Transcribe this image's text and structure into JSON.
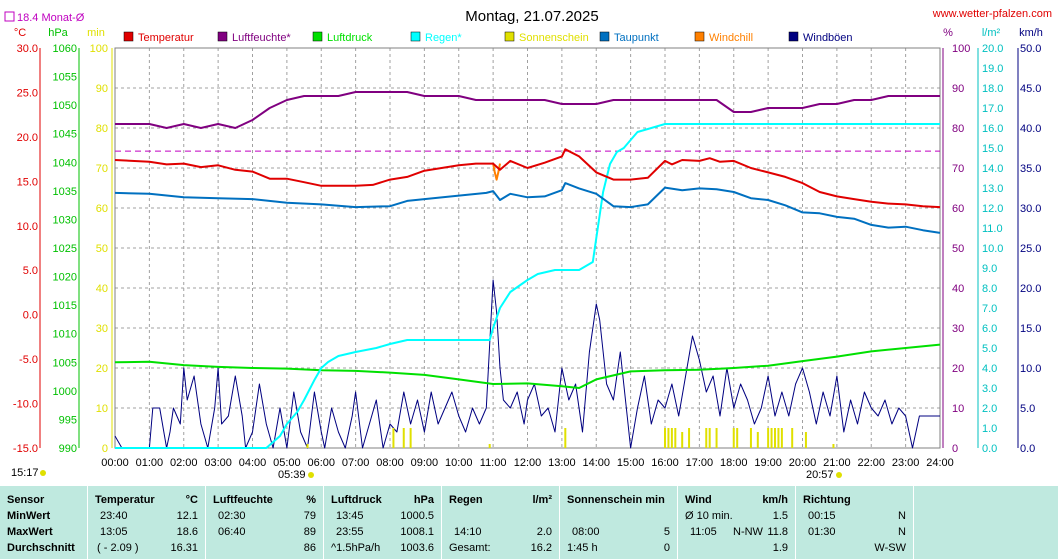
{
  "title": "Montag, 21.07.2025",
  "site": "www.wetter-pfalzen.com",
  "monthly_avg_label": "18.4 Monat-Ø",
  "sunrise": "05:39",
  "sunset": "20:57",
  "colors": {
    "temperature": "#e00000",
    "humidity": "#800080",
    "pressure": "#00e000",
    "rain": "#00ffff",
    "sunshine": "#e0e000",
    "dewpoint": "#0070c0",
    "windchill": "#ff8000",
    "gusts": "#000080",
    "monthly": "#c000c0",
    "plot_bg": "#ffffff",
    "summary_bg": "#bfe9df"
  },
  "chart_data": {
    "type": "line",
    "title": "Montag, 21.07.2025",
    "x_ticks": [
      "00:00",
      "01:00",
      "02:00",
      "03:00",
      "04:00",
      "05:00",
      "06:00",
      "07:00",
      "08:00",
      "09:00",
      "10:00",
      "11:00",
      "12:00",
      "13:00",
      "14:00",
      "15:00",
      "16:00",
      "17:00",
      "18:00",
      "19:00",
      "20:00",
      "21:00",
      "22:00",
      "23:00",
      "24:00"
    ],
    "axes": [
      {
        "unit": "°C",
        "range": [
          -15,
          30
        ],
        "ticks": [
          "30.0",
          "25.0",
          "20.0",
          "15.0",
          "10.0",
          "5.0",
          "0.0",
          "-5.0",
          "-10.0",
          "-15.0"
        ],
        "color": "#e00000"
      },
      {
        "unit": "hPa",
        "range": [
          990,
          1060
        ],
        "ticks": [
          "1060",
          "1055",
          "1050",
          "1045",
          "1040",
          "1035",
          "1030",
          "1025",
          "1020",
          "1015",
          "1010",
          "1005",
          "1000",
          "995",
          "990"
        ],
        "color": "#00c000"
      },
      {
        "unit": "min",
        "range": [
          0,
          100
        ],
        "ticks": [
          "100",
          "90",
          "80",
          "70",
          "60",
          "50",
          "40",
          "30",
          "20",
          "10",
          "0"
        ],
        "color": "#e0e000"
      },
      {
        "unit": "%",
        "range": [
          0,
          100
        ],
        "ticks": [
          "100",
          "90",
          "80",
          "70",
          "60",
          "50",
          "40",
          "30",
          "20",
          "10",
          "0"
        ],
        "color": "#800080"
      },
      {
        "unit": "l/m²",
        "range": [
          0,
          20
        ],
        "ticks": [
          "20.0",
          "19.0",
          "18.0",
          "17.0",
          "16.0",
          "15.0",
          "14.0",
          "13.0",
          "12.0",
          "11.0",
          "10.0",
          "9.0",
          "8.0",
          "7.0",
          "6.0",
          "5.0",
          "4.0",
          "3.0",
          "2.0",
          "1.0",
          "0.0"
        ],
        "color": "#00c0c0"
      },
      {
        "unit": "km/h",
        "range": [
          0,
          50
        ],
        "ticks": [
          "50.0",
          "45.0",
          "40.0",
          "35.0",
          "30.0",
          "25.0",
          "20.0",
          "15.0",
          "10.0",
          "5.0",
          "0.0"
        ],
        "color": "#000080"
      }
    ],
    "legend": [
      "Temperatur",
      "Luftfeuchte*",
      "Luftdruck",
      "Regen*",
      "Sonnenschein",
      "Taupunkt",
      "Windchill",
      "Windböen"
    ],
    "monthly_avg_temp": 18.4,
    "series": [
      {
        "name": "Temperatur",
        "axis": "°C",
        "x": [
          0,
          1,
          1.5,
          2,
          2.5,
          3,
          3.5,
          4,
          4.5,
          5,
          5.5,
          6,
          6.5,
          7,
          7.5,
          8,
          8.5,
          9,
          9.5,
          10,
          10.5,
          11,
          11.2,
          11.5,
          12,
          12.5,
          13,
          13.1,
          13.5,
          14,
          14.5,
          15,
          15.5,
          16,
          16.2,
          16.5,
          17,
          17.3,
          17.6,
          18,
          18.5,
          19,
          19.5,
          20,
          20.5,
          21,
          21.5,
          22,
          22.5,
          23,
          23.5,
          24
        ],
        "y": [
          17.4,
          17.2,
          16.9,
          17.0,
          16.6,
          16.8,
          16.3,
          16.1,
          15.3,
          15.3,
          14.9,
          14.5,
          14.5,
          14.5,
          14.6,
          15.2,
          15.5,
          16.2,
          16.5,
          16.8,
          17.0,
          17.0,
          16.3,
          17.3,
          16.5,
          17.1,
          17.8,
          18.6,
          17.8,
          16.0,
          15.2,
          15.2,
          15.4,
          17.3,
          16.9,
          17.4,
          17.3,
          17.6,
          17.2,
          17.3,
          16.5,
          16.0,
          15.5,
          14.8,
          13.8,
          13.3,
          13.0,
          12.7,
          12.5,
          12.4,
          12.2,
          12.1
        ]
      },
      {
        "name": "Luftfeuchte*",
        "axis": "%",
        "x": [
          0,
          0.5,
          1,
          1.5,
          2,
          2.5,
          3,
          3.5,
          4,
          4.5,
          5,
          5.5,
          6,
          6.5,
          7,
          7.5,
          8,
          8.5,
          9,
          9.5,
          10,
          10.5,
          11,
          11.5,
          12,
          12.5,
          13,
          13.5,
          14,
          14.5,
          15,
          15.5,
          16,
          16.5,
          17,
          17.5,
          18,
          18.5,
          19,
          19.5,
          20,
          20.5,
          21,
          21.5,
          22,
          22.5,
          23,
          23.5,
          24
        ],
        "y": [
          81,
          81,
          81,
          80,
          81,
          80,
          81,
          80,
          82,
          85,
          87,
          88,
          88,
          88,
          89,
          89,
          89,
          89,
          88,
          88,
          88,
          87,
          87,
          87,
          87,
          87,
          86,
          86,
          86,
          87,
          87,
          87,
          87,
          87,
          87,
          87,
          84,
          84,
          85,
          85,
          85,
          86,
          86,
          87,
          87,
          88,
          88,
          88,
          88
        ]
      },
      {
        "name": "Luftdruck",
        "axis": "hPa",
        "x": [
          0,
          1,
          2,
          3,
          4,
          5,
          6,
          7,
          8,
          8.5,
          9,
          10,
          11,
          12,
          13,
          13.5,
          14,
          15,
          16,
          17,
          18,
          19,
          20,
          21,
          22,
          23,
          24
        ],
        "y": [
          1005.0,
          1005.1,
          1004.5,
          1004.2,
          1004.0,
          1003.9,
          1003.6,
          1003.5,
          1003.2,
          1003.0,
          1002.8,
          1002.0,
          1001.2,
          1001.3,
          1000.8,
          1000.5,
          1002.0,
          1003.4,
          1003.6,
          1003.7,
          1004.0,
          1004.4,
          1005.2,
          1006.0,
          1006.9,
          1007.5,
          1008.1
        ]
      },
      {
        "name": "Regen*",
        "axis": "l/m²",
        "x": [
          0,
          4.4,
          4.8,
          5.0,
          5.3,
          5.5,
          5.8,
          6.0,
          6.2,
          6.5,
          7.0,
          7.3,
          7.6,
          8.0,
          8.5,
          9.0,
          10.0,
          10.9,
          11.0,
          11.2,
          11.5,
          12.0,
          12.3,
          12.8,
          13.5,
          13.9,
          14.0,
          14.2,
          14.4,
          14.6,
          14.8,
          15.0,
          15.2,
          15.6,
          16.0,
          16.5,
          17.0,
          18.0,
          19.0,
          20.0,
          21.0,
          22.0,
          23.0,
          24.0
        ],
        "y": [
          0,
          0,
          0.6,
          1.2,
          1.8,
          2.4,
          3.4,
          4.0,
          4.3,
          4.6,
          4.8,
          4.9,
          5.0,
          5.2,
          5.4,
          5.4,
          5.4,
          5.4,
          6.0,
          7.0,
          7.8,
          8.4,
          8.7,
          8.9,
          8.9,
          9.3,
          10.5,
          12.8,
          14.2,
          14.8,
          15.0,
          15.4,
          15.8,
          16.0,
          16.2,
          16.2,
          16.2,
          16.2,
          16.2,
          16.2,
          16.2,
          16.2,
          16.2,
          16.2
        ]
      },
      {
        "name": "Taupunkt",
        "axis": "°C",
        "x": [
          0,
          1,
          2,
          3,
          4,
          5,
          6,
          7,
          8,
          8.5,
          9,
          10,
          10.8,
          11,
          11.2,
          11.5,
          12,
          12.5,
          13,
          13.1,
          13.5,
          14,
          14.5,
          15,
          15.5,
          16,
          16.5,
          17,
          17.5,
          18,
          18.5,
          19,
          19.5,
          20,
          20.5,
          21,
          21.5,
          22,
          22.5,
          23,
          23.5,
          24
        ],
        "y": [
          13.7,
          13.6,
          13.2,
          13.1,
          13.0,
          12.6,
          12.4,
          12.1,
          12.2,
          12.8,
          13.0,
          13.4,
          13.7,
          13.9,
          12.9,
          13.6,
          13.2,
          13.3,
          14.0,
          14.8,
          14.2,
          13.6,
          12.2,
          12.1,
          12.4,
          14.3,
          14.0,
          14.2,
          14.1,
          13.8,
          13.1,
          12.9,
          12.3,
          11.5,
          11.4,
          11.0,
          10.8,
          10.1,
          9.8,
          9.9,
          9.5,
          9.2
        ]
      },
      {
        "name": "Windchill",
        "axis": "°C",
        "x": [
          11.0,
          11.05,
          11.1,
          11.15,
          11.2
        ],
        "y": [
          17.0,
          16.0,
          15.2,
          16.0,
          17.0
        ]
      },
      {
        "name": "Windböen",
        "axis": "km/h",
        "x": [
          0,
          0.2,
          0.4,
          0.8,
          1.0,
          1.1,
          1.3,
          1.5,
          1.6,
          1.7,
          1.9,
          2.0,
          2.1,
          2.3,
          2.5,
          2.7,
          2.9,
          3.0,
          3.1,
          3.3,
          3.5,
          3.7,
          3.8,
          4.0,
          4.2,
          4.4,
          4.6,
          4.8,
          5.0,
          5.2,
          5.4,
          5.6,
          5.8,
          6.0,
          6.1,
          6.3,
          6.5,
          6.7,
          6.9,
          7.0,
          7.2,
          7.4,
          7.6,
          7.8,
          8.0,
          8.2,
          8.4,
          8.6,
          8.8,
          9.0,
          9.2,
          9.4,
          9.6,
          9.8,
          10.0,
          10.2,
          10.4,
          10.6,
          10.8,
          10.9,
          11.0,
          11.1,
          11.2,
          11.3,
          11.5,
          11.7,
          11.9,
          12.0,
          12.2,
          12.4,
          12.6,
          12.8,
          13.0,
          13.2,
          13.4,
          13.6,
          13.8,
          14.0,
          14.1,
          14.3,
          14.5,
          14.7,
          14.9,
          15.0,
          15.2,
          15.4,
          15.6,
          15.8,
          16.0,
          16.2,
          16.4,
          16.6,
          16.8,
          17.0,
          17.2,
          17.4,
          17.6,
          17.8,
          18.0,
          18.2,
          18.4,
          18.6,
          18.8,
          19.0,
          19.2,
          19.4,
          19.6,
          19.8,
          20.0,
          20.2,
          20.4,
          20.6,
          20.8,
          21.0,
          21.2,
          21.4,
          21.6,
          21.8,
          22.0,
          22.2,
          22.4,
          22.6,
          22.8,
          23.0,
          23.2,
          23.4,
          23.6,
          23.8,
          24.0
        ],
        "y": [
          1.5,
          0,
          0,
          0,
          0,
          5,
          5,
          0,
          2,
          5,
          3,
          10,
          6,
          9,
          3,
          0,
          5,
          10,
          3,
          4,
          9,
          4,
          0,
          2,
          8,
          3,
          0,
          5,
          0,
          7,
          2,
          0,
          7,
          2,
          0,
          5,
          2,
          0,
          4,
          7,
          0,
          3,
          6,
          0,
          3,
          2,
          7,
          3,
          6,
          2,
          7,
          3,
          5,
          7,
          4,
          2,
          5,
          3,
          5,
          13,
          21,
          17,
          10,
          6,
          5,
          7,
          3,
          6,
          8,
          4,
          5,
          2,
          10,
          6,
          8,
          2,
          12,
          18,
          16,
          8,
          6,
          12,
          4,
          0,
          5,
          9,
          3,
          6,
          5,
          8,
          4,
          9,
          14,
          11,
          7,
          9,
          4,
          10,
          5,
          8,
          6,
          3,
          5,
          9,
          4,
          7,
          4,
          8,
          10,
          7,
          3,
          7,
          4,
          9,
          2,
          6,
          3,
          7,
          5,
          4,
          6,
          3,
          5,
          4,
          0,
          4,
          4,
          4,
          4
        ]
      },
      {
        "name": "Sonnenschein",
        "axis": "min",
        "x": [
          5.6,
          8.1,
          8.4,
          8.6,
          10.9,
          13.1,
          16.0,
          16.1,
          16.2,
          16.3,
          16.5,
          16.7,
          17.2,
          17.3,
          17.5,
          18.0,
          18.1,
          18.5,
          18.7,
          19.0,
          19.1,
          19.2,
          19.3,
          19.4,
          19.7,
          20.1,
          20.9
        ],
        "y": [
          1,
          5,
          5,
          5,
          1,
          5,
          5,
          5,
          5,
          5,
          4,
          5,
          5,
          5,
          5,
          5,
          5,
          5,
          4,
          5,
          5,
          5,
          5,
          5,
          5,
          4,
          1
        ]
      }
    ]
  },
  "summary": {
    "headers": {
      "sensor": "Sensor",
      "temp": "Temperatur",
      "temp_unit": "°C",
      "hum": "Luftfeuchte",
      "hum_unit": "%",
      "press": "Luftdruck",
      "press_unit": "hPa",
      "rain": "Regen",
      "rain_unit": "l/m²",
      "sun": "Sonnenschein min",
      "wind": "Wind",
      "wind_unit": "km/h",
      "dir": "Richtung"
    },
    "rows": [
      {
        "label": "MinWert",
        "temp_time": "23:40",
        "temp_val": "12.1",
        "hum_time": "02:30",
        "hum_val": "79",
        "press_time": "13:45",
        "press_val": "1000.5",
        "rain_time": "",
        "rain_val": "",
        "sun_time": "",
        "sun_val": "",
        "wind_time": "Ø 10 min.",
        "wind_dir": "",
        "wind_val": "1.5",
        "dir_time": "00:15",
        "dir_val": "N"
      },
      {
        "label": "MaxWert",
        "temp_time": "13:05",
        "temp_val": "18.6",
        "hum_time": "06:40",
        "hum_val": "89",
        "press_time": "23:55",
        "press_val": "1008.1",
        "rain_time": "14:10",
        "rain_val": "2.0",
        "sun_time": "08:00",
        "sun_val": "5",
        "wind_time": "11:05",
        "wind_dir": "N-NW",
        "wind_val": "11.8",
        "dir_time": "01:30",
        "dir_val": "N"
      },
      {
        "label": "Durchschnitt",
        "temp_time": "( - 2.09 )",
        "temp_val": "16.31",
        "hum_time": "",
        "hum_val": "86",
        "press_time": "^1.5hPa/h",
        "press_val": "1003.6",
        "rain_time": "Gesamt:",
        "rain_val": "16.2",
        "sun_time": "1:45 h",
        "sun_val": "0",
        "wind_time": "",
        "wind_dir": "",
        "wind_val": "1.9",
        "dir_time": "",
        "dir_val": "W-SW"
      }
    ]
  }
}
